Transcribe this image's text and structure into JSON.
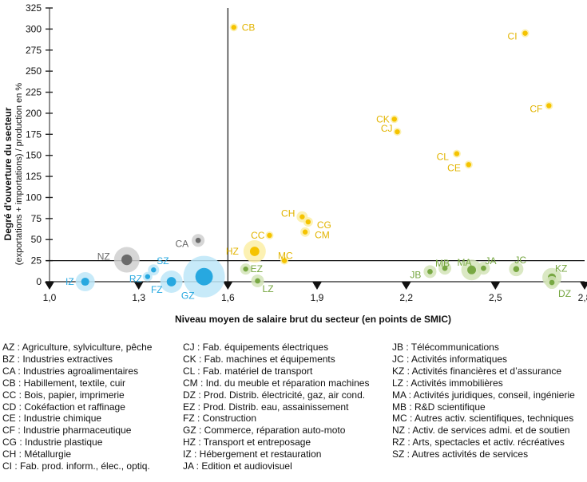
{
  "chart_data": {
    "type": "scatter",
    "title": "",
    "xlabel": "Niveau moyen de salaire brut du secteur (en points de SMIC)",
    "ylabel": "Degré d'ouverture du secteur",
    "ylabel_sub": "(exportations + importations) / production en %",
    "xlim": [
      1.0,
      2.8
    ],
    "ylim": [
      0,
      325
    ],
    "x_ticks": [
      "1,0",
      "1,3",
      "1,6",
      "1,9",
      "2,2",
      "2,5",
      "2,8"
    ],
    "y_ticks": [
      "0",
      "25",
      "50",
      "75",
      "100",
      "125",
      "150",
      "175",
      "200",
      "225",
      "250",
      "275",
      "300",
      "325"
    ],
    "reference_lines": {
      "x": 1.6,
      "y": 25
    },
    "colors": {
      "industry": "#f2c200",
      "services": "#7aa842",
      "market_services": "#29a9e1",
      "other": "#6e6e6e"
    },
    "points": [
      {
        "code": "CB",
        "x": 1.62,
        "y": 302,
        "group": "industry",
        "size": 5
      },
      {
        "code": "CI",
        "x": 2.6,
        "y": 295,
        "group": "industry",
        "size": 5
      },
      {
        "code": "CF",
        "x": 2.68,
        "y": 209,
        "group": "industry",
        "size": 5
      },
      {
        "code": "CK",
        "x": 2.16,
        "y": 193,
        "group": "industry",
        "size": 5
      },
      {
        "code": "CJ",
        "x": 2.17,
        "y": 178,
        "group": "industry",
        "size": 5
      },
      {
        "code": "CL",
        "x": 2.37,
        "y": 152,
        "group": "industry",
        "size": 5
      },
      {
        "code": "CE",
        "x": 2.41,
        "y": 139,
        "group": "industry",
        "size": 5
      },
      {
        "code": "CH",
        "x": 1.85,
        "y": 77,
        "group": "industry",
        "size": 7
      },
      {
        "code": "CG",
        "x": 1.87,
        "y": 71,
        "group": "industry",
        "size": 6
      },
      {
        "code": "CM",
        "x": 1.86,
        "y": 59,
        "group": "industry",
        "size": 6
      },
      {
        "code": "CC",
        "x": 1.74,
        "y": 55,
        "group": "industry",
        "size": 5
      },
      {
        "code": "HZ",
        "x": 1.69,
        "y": 36,
        "group": "industry",
        "size": 14
      },
      {
        "code": "MC",
        "x": 1.79,
        "y": 25,
        "group": "industry",
        "size": 5
      },
      {
        "code": "CA",
        "x": 1.5,
        "y": 49,
        "group": "other",
        "size": 8
      },
      {
        "code": "NZ",
        "x": 1.26,
        "y": 26,
        "group": "other",
        "size": 16
      },
      {
        "code": "SZ",
        "x": 1.35,
        "y": 14,
        "group": "market_services",
        "size": 7
      },
      {
        "code": "RZ",
        "x": 1.33,
        "y": 6,
        "group": "market_services",
        "size": 6
      },
      {
        "code": "IZ",
        "x": 1.12,
        "y": 0,
        "group": "market_services",
        "size": 12
      },
      {
        "code": "FZ",
        "x": 1.41,
        "y": 0,
        "group": "market_services",
        "size": 14
      },
      {
        "code": "GZ",
        "x": 1.52,
        "y": 6,
        "group": "market_services",
        "size": 26
      },
      {
        "code": "EZ",
        "x": 1.66,
        "y": 15,
        "group": "services",
        "size": 7
      },
      {
        "code": "LZ",
        "x": 1.7,
        "y": 1,
        "group": "services",
        "size": 8
      },
      {
        "code": "JB",
        "x": 2.28,
        "y": 12,
        "group": "services",
        "size": 8
      },
      {
        "code": "MB",
        "x": 2.33,
        "y": 16,
        "group": "services",
        "size": 8
      },
      {
        "code": "MA",
        "x": 2.42,
        "y": 14,
        "group": "services",
        "size": 13
      },
      {
        "code": "JA",
        "x": 2.46,
        "y": 16,
        "group": "services",
        "size": 8
      },
      {
        "code": "JC",
        "x": 2.57,
        "y": 15,
        "group": "services",
        "size": 9
      },
      {
        "code": "KZ",
        "x": 2.69,
        "y": 5,
        "group": "services",
        "size": 12
      },
      {
        "code": "DZ",
        "x": 2.69,
        "y": -1,
        "group": "services",
        "size": 8
      }
    ]
  },
  "legend": [
    [
      "AZ : Agriculture, sylviculture, pêche",
      "BZ : Industries extractives",
      "CA : Industries agroalimentaires",
      "CB : Habillement, textile, cuir",
      "CC : Bois, papier, imprimerie",
      "CD : Cokéfaction et raffinage",
      "CE : Industrie chimique",
      "CF : Industrie pharmaceutique",
      "CG : Industrie plastique",
      "CH : Métallurgie",
      "CI : Fab. prod. inform., élec., optiq."
    ],
    [
      "CJ : Fab. équipements électriques",
      "CK : Fab. machines et équipements",
      "CL : Fab. matériel de transport",
      "CM : Ind. du meuble et réparation machines",
      "DZ : Prod. Distrib. électricité, gaz, air cond.",
      "EZ : Prod. Distrib. eau, assainissement",
      "FZ : Construction",
      "GZ : Commerce, réparation auto-moto",
      "HZ : Transport et entreposage",
      "IZ : Hébergement et restauration",
      "JA : Edition et audiovisuel"
    ],
    [
      "JB : Télécommunications",
      "JC : Activités informatiques",
      "KZ : Activités financières et d’assurance",
      "LZ : Activités immobilières",
      "MA : Activités juridiques, conseil, ingénierie",
      "MB : R&D scientifique",
      "MC : Autres activ. scientifiques, techniques",
      "NZ : Activ. de services admi. et de soutien",
      "RZ : Arts, spectacles et activ. récréatives",
      "SZ : Autres activités de services"
    ]
  ]
}
